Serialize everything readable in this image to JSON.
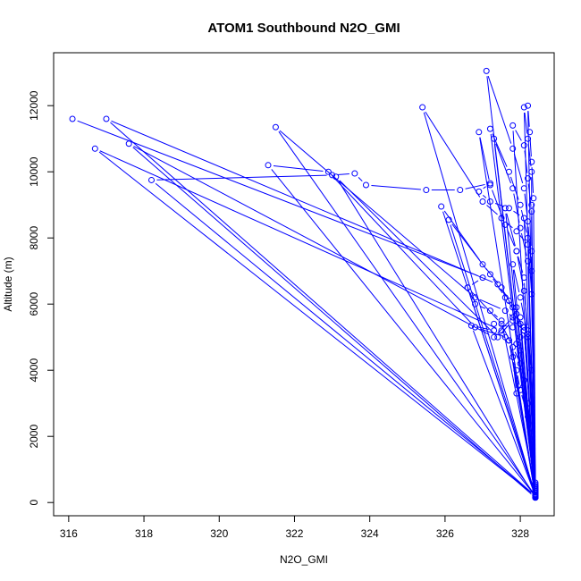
{
  "chart_data": {
    "type": "line",
    "title": "ATOM1 Southbound N2O_GMI",
    "xlabel": "N2O_GMI",
    "ylabel": "Altitude (m)",
    "xlim": [
      315.6,
      328.9
    ],
    "ylim": [
      -400,
      13600
    ],
    "xticks": [
      316,
      318,
      320,
      322,
      324,
      326,
      328
    ],
    "yticks": [
      0,
      2000,
      4000,
      6000,
      8000,
      10000,
      12000
    ],
    "color": "#0000ff",
    "marker": "open-circle",
    "grid": false,
    "legend": "none",
    "series": [
      {
        "values": [
          [
            316.1,
            11600
          ],
          [
            327.0,
            6800
          ],
          [
            326.6,
            6500
          ],
          [
            326.8,
            6000
          ],
          [
            327.2,
            5800
          ],
          [
            327.5,
            5500
          ],
          [
            328.4,
            400
          ],
          [
            328.4,
            200
          ],
          [
            317.0,
            11600
          ],
          [
            327.4,
            6600
          ],
          [
            327.7,
            6100
          ],
          [
            327.9,
            5900
          ],
          [
            328.0,
            5600
          ],
          [
            328.4,
            300
          ],
          [
            328.4,
            200
          ],
          [
            316.7,
            10700
          ],
          [
            327.5,
            5200
          ],
          [
            327.3,
            5400
          ],
          [
            327.8,
            5300
          ],
          [
            328.0,
            5000
          ],
          [
            328.4,
            250
          ],
          [
            328.4,
            150
          ],
          [
            317.6,
            10850
          ],
          [
            327.3,
            5000
          ],
          [
            327.8,
            5600
          ],
          [
            328.1,
            5300
          ],
          [
            328.4,
            300
          ],
          [
            328.4,
            200
          ],
          [
            318.2,
            9750
          ],
          [
            323.0,
            9900
          ],
          [
            323.6,
            9950
          ],
          [
            323.9,
            9600
          ],
          [
            325.5,
            9450
          ],
          [
            326.4,
            9450
          ],
          [
            327.2,
            9650
          ],
          [
            326.9,
            9400
          ],
          [
            327.2,
            9100
          ],
          [
            327.7,
            8900
          ],
          [
            328.1,
            8600
          ],
          [
            328.4,
            400
          ],
          [
            328.4,
            200
          ],
          [
            321.5,
            11350
          ],
          [
            326.8,
            6200
          ],
          [
            327.6,
            5800
          ],
          [
            327.9,
            5500
          ],
          [
            328.1,
            5200
          ],
          [
            328.4,
            300
          ],
          [
            328.4,
            200
          ],
          [
            321.3,
            10200
          ],
          [
            322.9,
            10000
          ],
          [
            326.8,
            5300
          ],
          [
            327.6,
            5000
          ],
          [
            327.9,
            4800
          ],
          [
            328.4,
            250
          ],
          [
            328.4,
            150
          ],
          [
            323.1,
            9850
          ],
          [
            327.4,
            5000
          ],
          [
            327.8,
            5500
          ],
          [
            328.2,
            5100
          ],
          [
            328.4,
            350
          ],
          [
            328.4,
            200
          ],
          [
            325.4,
            11950
          ],
          [
            327.0,
            9100
          ],
          [
            327.5,
            8600
          ],
          [
            327.9,
            8200
          ],
          [
            328.2,
            7800
          ],
          [
            328.4,
            450
          ],
          [
            328.4,
            250
          ],
          [
            327.1,
            13050
          ],
          [
            327.8,
            10700
          ],
          [
            328.1,
            9500
          ],
          [
            328.2,
            8500
          ],
          [
            328.3,
            7000
          ],
          [
            328.4,
            500
          ],
          [
            328.4,
            200
          ],
          [
            326.9,
            11200
          ],
          [
            327.2,
            9600
          ],
          [
            327.6,
            8400
          ],
          [
            327.9,
            7600
          ],
          [
            328.1,
            6800
          ],
          [
            328.4,
            450
          ],
          [
            328.4,
            250
          ],
          [
            327.2,
            11300
          ],
          [
            327.7,
            10000
          ],
          [
            328.0,
            9000
          ],
          [
            328.2,
            8000
          ],
          [
            328.3,
            6300
          ],
          [
            328.4,
            400
          ],
          [
            328.4,
            200
          ],
          [
            327.8,
            11400
          ],
          [
            328.1,
            10800
          ],
          [
            328.2,
            9800
          ],
          [
            328.3,
            8800
          ],
          [
            328.3,
            7600
          ],
          [
            328.4,
            500
          ],
          [
            328.4,
            250
          ],
          [
            326.1,
            8550
          ],
          [
            327.2,
            6900
          ],
          [
            327.6,
            6200
          ],
          [
            327.9,
            5700
          ],
          [
            328.1,
            5200
          ],
          [
            328.4,
            350
          ],
          [
            328.4,
            200
          ],
          [
            325.9,
            8950
          ],
          [
            327.0,
            7200
          ],
          [
            327.5,
            6500
          ],
          [
            327.8,
            5900
          ],
          [
            328.0,
            5400
          ],
          [
            328.4,
            300
          ],
          [
            328.4,
            200
          ],
          [
            326.7,
            5350
          ],
          [
            327.3,
            5200
          ],
          [
            327.7,
            4900
          ],
          [
            328.0,
            4600
          ],
          [
            328.4,
            300
          ],
          [
            328.4,
            180
          ],
          [
            326.6,
            6500
          ],
          [
            327.5,
            5400
          ],
          [
            327.8,
            4700
          ],
          [
            328.0,
            4200
          ],
          [
            328.4,
            250
          ],
          [
            328.4,
            150
          ],
          [
            328.1,
            11950
          ],
          [
            328.2,
            11000
          ],
          [
            328.3,
            10000
          ],
          [
            328.3,
            9000
          ],
          [
            328.4,
            600
          ],
          [
            328.4,
            250
          ],
          [
            328.2,
            12000
          ],
          [
            328.25,
            11200
          ],
          [
            328.3,
            10300
          ],
          [
            328.35,
            9200
          ],
          [
            328.4,
            550
          ],
          [
            328.4,
            200
          ],
          [
            327.3,
            11000
          ],
          [
            327.8,
            9500
          ],
          [
            328.0,
            8300
          ],
          [
            328.2,
            7300
          ],
          [
            328.4,
            400
          ],
          [
            328.4,
            220
          ],
          [
            327.6,
            8900
          ],
          [
            327.9,
            7600
          ],
          [
            328.1,
            6400
          ],
          [
            328.2,
            5200
          ],
          [
            328.4,
            350
          ],
          [
            328.4,
            180
          ],
          [
            327.8,
            7200
          ],
          [
            328.0,
            6200
          ],
          [
            328.2,
            5000
          ],
          [
            328.3,
            4000
          ],
          [
            328.4,
            300
          ],
          [
            328.4,
            150
          ],
          [
            327.8,
            4400
          ],
          [
            327.9,
            3300
          ],
          [
            328.1,
            3700
          ],
          [
            328.2,
            3000
          ],
          [
            328.3,
            2000
          ],
          [
            328.4,
            300
          ],
          [
            328.4,
            200
          ],
          [
            327.7,
            4900
          ],
          [
            327.9,
            4000
          ],
          [
            328.0,
            3400
          ],
          [
            328.2,
            2600
          ],
          [
            328.4,
            250
          ],
          [
            328.4,
            150
          ]
        ]
      }
    ]
  }
}
